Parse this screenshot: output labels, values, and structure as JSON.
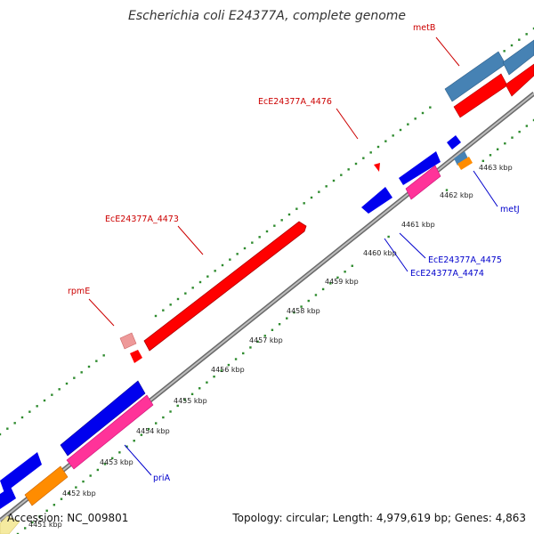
{
  "title": "Escherichia coli E24377A, complete genome",
  "footer": {
    "accession": "Accession: NC_009801",
    "summary": "Topology: circular; Length: 4,979,619 bp; Genes: 4,863"
  },
  "colors": {
    "background": "#ffffff",
    "backbone": "#808080",
    "dots": "#2e8b2e",
    "gene_red": "#ff0000",
    "gene_blue": "#0000ee",
    "gene_pink": "#ff3399",
    "gene_orange": "#ff8c00",
    "gene_steel": "#4682b4",
    "gene_pale_red": "#ee9999",
    "label_red": "#cc0000",
    "label_blue": "#0000cc"
  },
  "scale": {
    "unit": "kbp",
    "ticks": [
      {
        "value": 4451,
        "label": "4451 kbp"
      },
      {
        "value": 4452,
        "label": "4452 kbp"
      },
      {
        "value": 4453,
        "label": "4453 kbp"
      },
      {
        "value": 4454,
        "label": "4454 kbp"
      },
      {
        "value": 4455,
        "label": "4455 kbp"
      },
      {
        "value": 4456,
        "label": "4456 kbp"
      },
      {
        "value": 4457,
        "label": "4457 kbp"
      },
      {
        "value": 4458,
        "label": "4458 kbp"
      },
      {
        "value": 4459,
        "label": "4459 kbp"
      },
      {
        "value": 4460,
        "label": "4460 kbp"
      },
      {
        "value": 4461,
        "label": "4461 kbp"
      },
      {
        "value": 4462,
        "label": "4462 kbp"
      },
      {
        "value": 4463,
        "label": "4463 kbp"
      }
    ]
  },
  "labels": [
    {
      "text": "metB",
      "strand": "forward"
    },
    {
      "text": "EcE24377A_4476",
      "strand": "forward"
    },
    {
      "text": "EcE24377A_4473",
      "strand": "forward"
    },
    {
      "text": "rpmE",
      "strand": "forward"
    },
    {
      "text": "metJ",
      "strand": "reverse"
    },
    {
      "text": "EcE24377A_4475",
      "strand": "reverse"
    },
    {
      "text": "EcE24377A_4474",
      "strand": "reverse"
    },
    {
      "text": "priA",
      "strand": "reverse"
    }
  ]
}
